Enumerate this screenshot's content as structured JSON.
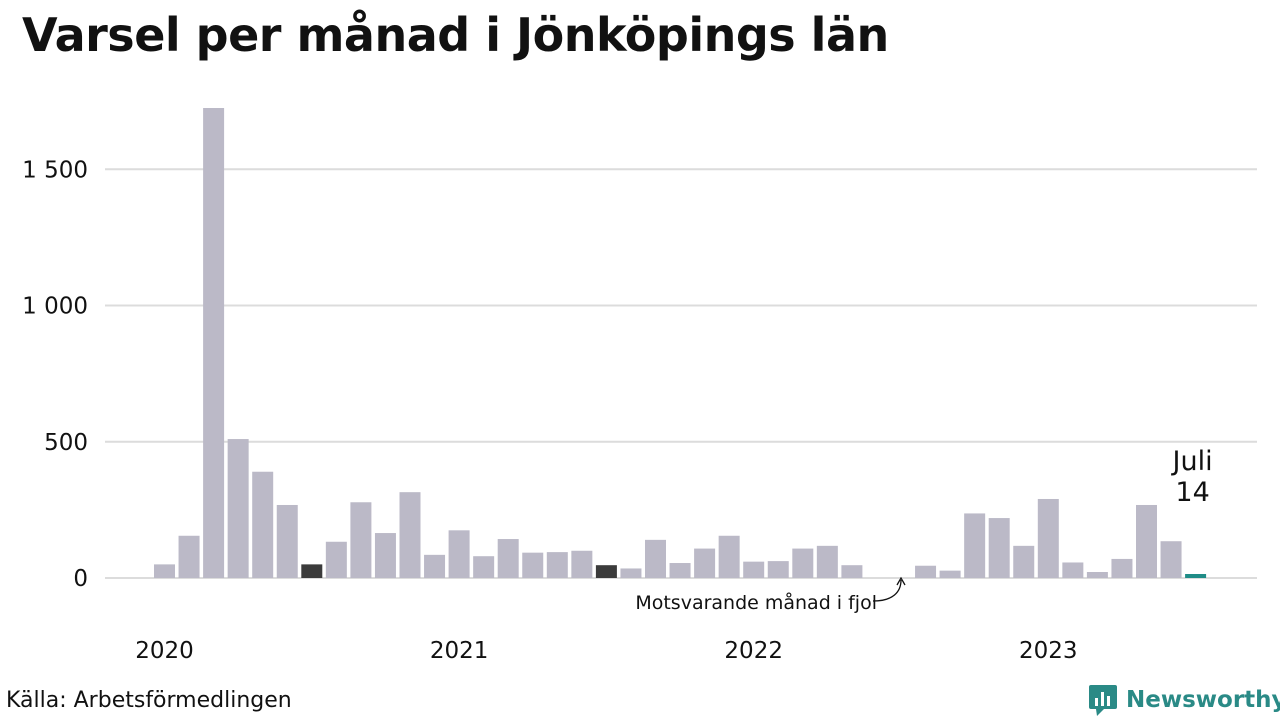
{
  "chart_data": {
    "type": "bar",
    "title": "Varsel per månad i Jönköpings län",
    "ylim": [
      0,
      1725
    ],
    "yticks": [
      0,
      500,
      1000,
      1500
    ],
    "ytick_labels": [
      "0",
      "500",
      "1 000",
      "1 500"
    ],
    "year_labels": [
      {
        "label": "2020",
        "index": 0
      },
      {
        "label": "2021",
        "index": 12
      },
      {
        "label": "2022",
        "index": 24
      },
      {
        "label": "2023",
        "index": 36
      }
    ],
    "months": [
      "2020-01",
      "2020-02",
      "2020-03",
      "2020-04",
      "2020-05",
      "2020-06",
      "2020-07",
      "2020-08",
      "2020-09",
      "2020-10",
      "2020-11",
      "2020-12",
      "2021-01",
      "2021-02",
      "2021-03",
      "2021-04",
      "2021-05",
      "2021-06",
      "2021-07",
      "2021-08",
      "2021-09",
      "2021-10",
      "2021-11",
      "2021-12",
      "2022-01",
      "2022-02",
      "2022-03",
      "2022-04",
      "2022-05",
      "2022-06",
      "2022-07",
      "2022-08",
      "2022-09",
      "2022-10",
      "2022-11",
      "2022-12",
      "2023-01",
      "2023-02",
      "2023-03",
      "2023-04",
      "2023-05",
      "2023-06",
      "2023-07"
    ],
    "values": [
      50,
      155,
      1725,
      510,
      390,
      268,
      50,
      133,
      278,
      165,
      315,
      85,
      175,
      80,
      143,
      93,
      95,
      100,
      47,
      35,
      140,
      55,
      108,
      155,
      60,
      62,
      108,
      118,
      47,
      0,
      0,
      45,
      27,
      237,
      220,
      118,
      290,
      57,
      22,
      70,
      268,
      135,
      14
    ],
    "highlight_dark_indices": [
      6,
      18
    ],
    "highlight_current_index": 42,
    "grid": true,
    "colors": {
      "bar": "#bbb9c7",
      "dark": "#3b3b3b",
      "current": "#1f8c87",
      "grid": "#dcdcdc",
      "text": "#111111"
    },
    "annotations": {
      "current_month": "Juli",
      "current_value": "14",
      "same_month_last_year": "Motsvarande månad i fjol"
    }
  },
  "footer": {
    "source": "Källa: Arbetsförmedlingen",
    "brand": "Newsworthy",
    "brand_icon": "newsworthy-logo-icon",
    "brand_color": "#2a8a86"
  }
}
